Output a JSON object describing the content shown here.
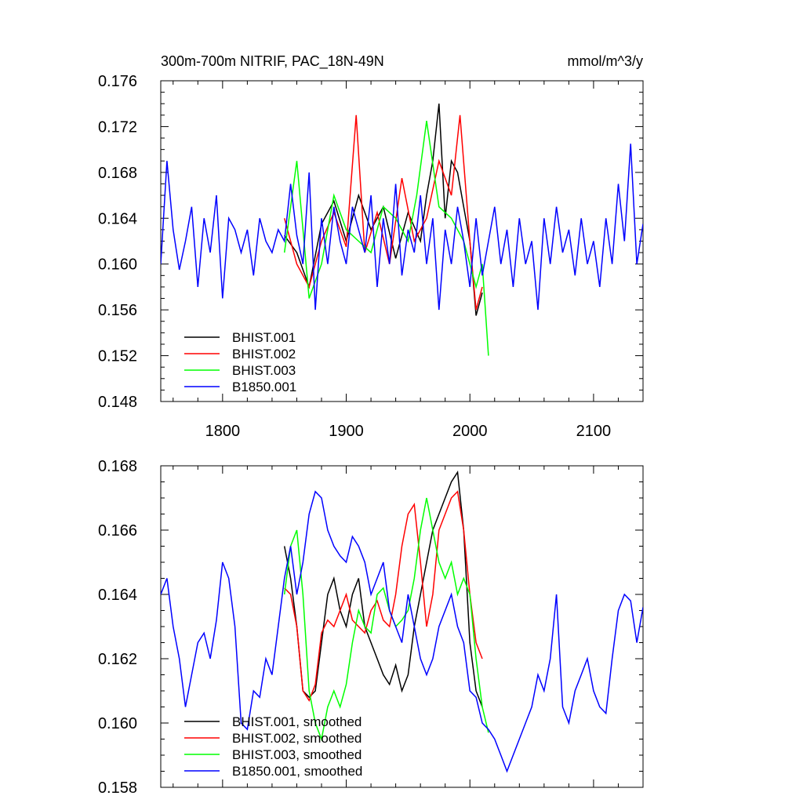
{
  "chart_data": [
    {
      "type": "line",
      "title": "300m-700m NITRIF, PAC_18N-49N",
      "units": "mmol/m^3/y",
      "xlim": [
        1750,
        2140
      ],
      "ylim": [
        0.148,
        0.176
      ],
      "xticks": [
        1800,
        1900,
        2000,
        2100
      ],
      "xtick_labels": [
        "1800",
        "1900",
        "2000",
        "2100"
      ],
      "yticks": [
        0.148,
        0.152,
        0.156,
        0.16,
        0.164,
        0.168,
        0.172,
        0.176
      ],
      "ytick_labels": [
        "0.148",
        "0.152",
        "0.156",
        "0.160",
        "0.164",
        "0.168",
        "0.172",
        "0.176"
      ],
      "legend_position": "bottom-left",
      "series": [
        {
          "name": "BHIST.001",
          "color": "#000000",
          "x": [
            1850,
            1860,
            1870,
            1880,
            1890,
            1900,
            1910,
            1920,
            1930,
            1940,
            1950,
            1960,
            1965,
            1970,
            1975,
            1980,
            1985,
            1990,
            1995,
            2000,
            2005,
            2010
          ],
          "values": [
            0.1625,
            0.161,
            0.158,
            0.1635,
            0.1655,
            0.162,
            0.166,
            0.163,
            0.165,
            0.1605,
            0.1645,
            0.162,
            0.166,
            0.169,
            0.174,
            0.164,
            0.169,
            0.168,
            0.165,
            0.162,
            0.1555,
            0.1575
          ]
        },
        {
          "name": "BHIST.002",
          "color": "#ff0000",
          "x": [
            1850,
            1860,
            1870,
            1880,
            1890,
            1900,
            1908,
            1915,
            1925,
            1935,
            1945,
            1955,
            1965,
            1975,
            1985,
            1992,
            2000,
            2005,
            2010
          ],
          "values": [
            0.164,
            0.16,
            0.158,
            0.162,
            0.1645,
            0.1615,
            0.173,
            0.161,
            0.1645,
            0.16,
            0.1675,
            0.162,
            0.164,
            0.169,
            0.166,
            0.173,
            0.162,
            0.156,
            0.158
          ]
        },
        {
          "name": "BHIST.003",
          "color": "#00ff00",
          "x": [
            1850,
            1860,
            1870,
            1880,
            1890,
            1900,
            1910,
            1920,
            1930,
            1940,
            1950,
            1957,
            1965,
            1975,
            1985,
            1995,
            2000,
            2005,
            2010,
            2015
          ],
          "values": [
            0.161,
            0.169,
            0.157,
            0.16,
            0.166,
            0.163,
            0.162,
            0.161,
            0.165,
            0.164,
            0.162,
            0.166,
            0.1725,
            0.165,
            0.164,
            0.162,
            0.16,
            0.158,
            0.16,
            0.152
          ]
        },
        {
          "name": "B1850.001",
          "color": "#0000ff",
          "x": [
            1750,
            1755,
            1760,
            1765,
            1770,
            1775,
            1780,
            1785,
            1790,
            1795,
            1800,
            1805,
            1810,
            1815,
            1820,
            1825,
            1830,
            1835,
            1840,
            1845,
            1850,
            1855,
            1860,
            1865,
            1870,
            1875,
            1880,
            1885,
            1890,
            1895,
            1900,
            1905,
            1910,
            1915,
            1920,
            1925,
            1930,
            1935,
            1940,
            1945,
            1950,
            1955,
            1960,
            1965,
            1970,
            1975,
            1980,
            1985,
            1990,
            1995,
            2000,
            2005,
            2010,
            2015,
            2020,
            2025,
            2030,
            2035,
            2040,
            2045,
            2050,
            2055,
            2060,
            2065,
            2070,
            2075,
            2080,
            2085,
            2090,
            2095,
            2100,
            2105,
            2110,
            2115,
            2120,
            2125,
            2130,
            2135,
            2140
          ],
          "values": [
            0.16,
            0.169,
            0.163,
            0.1595,
            0.162,
            0.165,
            0.158,
            0.164,
            0.161,
            0.166,
            0.157,
            0.164,
            0.163,
            0.161,
            0.163,
            0.159,
            0.164,
            0.162,
            0.161,
            0.163,
            0.162,
            0.167,
            0.1625,
            0.16,
            0.168,
            0.156,
            0.164,
            0.16,
            0.165,
            0.162,
            0.16,
            0.165,
            0.163,
            0.161,
            0.166,
            0.158,
            0.164,
            0.16,
            0.167,
            0.159,
            0.163,
            0.161,
            0.166,
            0.16,
            0.164,
            0.156,
            0.163,
            0.16,
            0.165,
            0.162,
            0.158,
            0.164,
            0.159,
            0.162,
            0.165,
            0.16,
            0.163,
            0.158,
            0.164,
            0.16,
            0.162,
            0.156,
            0.164,
            0.16,
            0.165,
            0.161,
            0.163,
            0.159,
            0.164,
            0.16,
            0.162,
            0.158,
            0.164,
            0.16,
            0.167,
            0.162,
            0.1705,
            0.16,
            0.1635
          ]
        }
      ]
    },
    {
      "type": "line",
      "xlim": [
        1750,
        2140
      ],
      "ylim": [
        0.158,
        0.168
      ],
      "xticks": [
        1800,
        1900,
        2000,
        2100
      ],
      "yticks": [
        0.158,
        0.16,
        0.162,
        0.164,
        0.166,
        0.168
      ],
      "ytick_labels": [
        "0.158",
        "0.160",
        "0.162",
        "0.164",
        "0.166",
        "0.168"
      ],
      "legend_position": "bottom-left",
      "series": [
        {
          "name": "BHIST.001, smoothed",
          "color": "#000000",
          "x": [
            1850,
            1855,
            1860,
            1865,
            1870,
            1875,
            1880,
            1885,
            1890,
            1895,
            1900,
            1905,
            1910,
            1915,
            1920,
            1925,
            1930,
            1935,
            1940,
            1945,
            1950,
            1955,
            1960,
            1965,
            1970,
            1975,
            1980,
            1985,
            1990,
            1995,
            2000,
            2005,
            2010
          ],
          "values": [
            0.1655,
            0.1645,
            0.163,
            0.161,
            0.1608,
            0.161,
            0.1625,
            0.164,
            0.1645,
            0.1635,
            0.163,
            0.164,
            0.1645,
            0.163,
            0.1625,
            0.162,
            0.1615,
            0.1612,
            0.1618,
            0.161,
            0.1615,
            0.163,
            0.164,
            0.165,
            0.166,
            0.1665,
            0.167,
            0.1675,
            0.1678,
            0.166,
            0.1625,
            0.161,
            0.1605
          ]
        },
        {
          "name": "BHIST.002, smoothed",
          "color": "#ff0000",
          "x": [
            1850,
            1855,
            1860,
            1865,
            1870,
            1875,
            1880,
            1885,
            1890,
            1895,
            1900,
            1905,
            1910,
            1915,
            1920,
            1925,
            1930,
            1935,
            1940,
            1945,
            1950,
            1955,
            1960,
            1965,
            1970,
            1975,
            1980,
            1985,
            1990,
            1995,
            2000,
            2005,
            2010
          ],
          "values": [
            0.1642,
            0.164,
            0.163,
            0.161,
            0.1607,
            0.1612,
            0.1628,
            0.1632,
            0.163,
            0.1635,
            0.164,
            0.1632,
            0.163,
            0.1628,
            0.1635,
            0.1638,
            0.1632,
            0.163,
            0.164,
            0.1655,
            0.1665,
            0.1668,
            0.165,
            0.163,
            0.164,
            0.166,
            0.1665,
            0.167,
            0.1672,
            0.166,
            0.164,
            0.1625,
            0.162
          ]
        },
        {
          "name": "BHIST.003, smoothed",
          "color": "#00ff00",
          "x": [
            1850,
            1855,
            1860,
            1865,
            1870,
            1875,
            1880,
            1885,
            1890,
            1895,
            1900,
            1905,
            1910,
            1915,
            1920,
            1925,
            1930,
            1935,
            1940,
            1945,
            1950,
            1955,
            1960,
            1965,
            1970,
            1975,
            1980,
            1985,
            1990,
            1995,
            2000,
            2005,
            2010,
            2015
          ],
          "values": [
            0.164,
            0.1655,
            0.166,
            0.164,
            0.161,
            0.16,
            0.1595,
            0.1605,
            0.161,
            0.1605,
            0.1612,
            0.1625,
            0.1635,
            0.163,
            0.1628,
            0.164,
            0.1642,
            0.1635,
            0.163,
            0.1632,
            0.1635,
            0.1645,
            0.166,
            0.167,
            0.166,
            0.165,
            0.1645,
            0.165,
            0.164,
            0.1645,
            0.164,
            0.162,
            0.1605,
            0.1597
          ]
        },
        {
          "name": "B1850.001, smoothed",
          "color": "#0000ff",
          "x": [
            1750,
            1755,
            1760,
            1765,
            1770,
            1775,
            1780,
            1785,
            1790,
            1795,
            1800,
            1805,
            1810,
            1815,
            1820,
            1825,
            1830,
            1835,
            1840,
            1845,
            1850,
            1855,
            1860,
            1865,
            1870,
            1875,
            1880,
            1885,
            1890,
            1895,
            1900,
            1905,
            1910,
            1915,
            1920,
            1925,
            1930,
            1935,
            1940,
            1945,
            1950,
            1955,
            1960,
            1965,
            1970,
            1975,
            1980,
            1985,
            1990,
            1995,
            2000,
            2005,
            2010,
            2015,
            2020,
            2025,
            2030,
            2035,
            2040,
            2045,
            2050,
            2055,
            2060,
            2065,
            2070,
            2075,
            2080,
            2085,
            2090,
            2095,
            2100,
            2105,
            2110,
            2115,
            2120,
            2125,
            2130,
            2135,
            2140
          ],
          "values": [
            0.164,
            0.1645,
            0.163,
            0.162,
            0.1605,
            0.1615,
            0.1625,
            0.1628,
            0.162,
            0.1632,
            0.165,
            0.1645,
            0.163,
            0.16,
            0.1598,
            0.161,
            0.1608,
            0.162,
            0.1615,
            0.163,
            0.1645,
            0.1655,
            0.164,
            0.165,
            0.1665,
            0.1672,
            0.167,
            0.166,
            0.1655,
            0.1652,
            0.165,
            0.1658,
            0.1655,
            0.165,
            0.164,
            0.1645,
            0.165,
            0.1635,
            0.163,
            0.1625,
            0.164,
            0.163,
            0.162,
            0.1615,
            0.162,
            0.163,
            0.1635,
            0.164,
            0.163,
            0.1625,
            0.161,
            0.1608,
            0.16,
            0.1598,
            0.1595,
            0.159,
            0.1585,
            0.159,
            0.1595,
            0.16,
            0.1605,
            0.1615,
            0.161,
            0.162,
            0.164,
            0.1605,
            0.16,
            0.161,
            0.1615,
            0.162,
            0.161,
            0.1605,
            0.1603,
            0.162,
            0.1635,
            0.164,
            0.1638,
            0.1625,
            0.1636
          ]
        }
      ]
    }
  ]
}
